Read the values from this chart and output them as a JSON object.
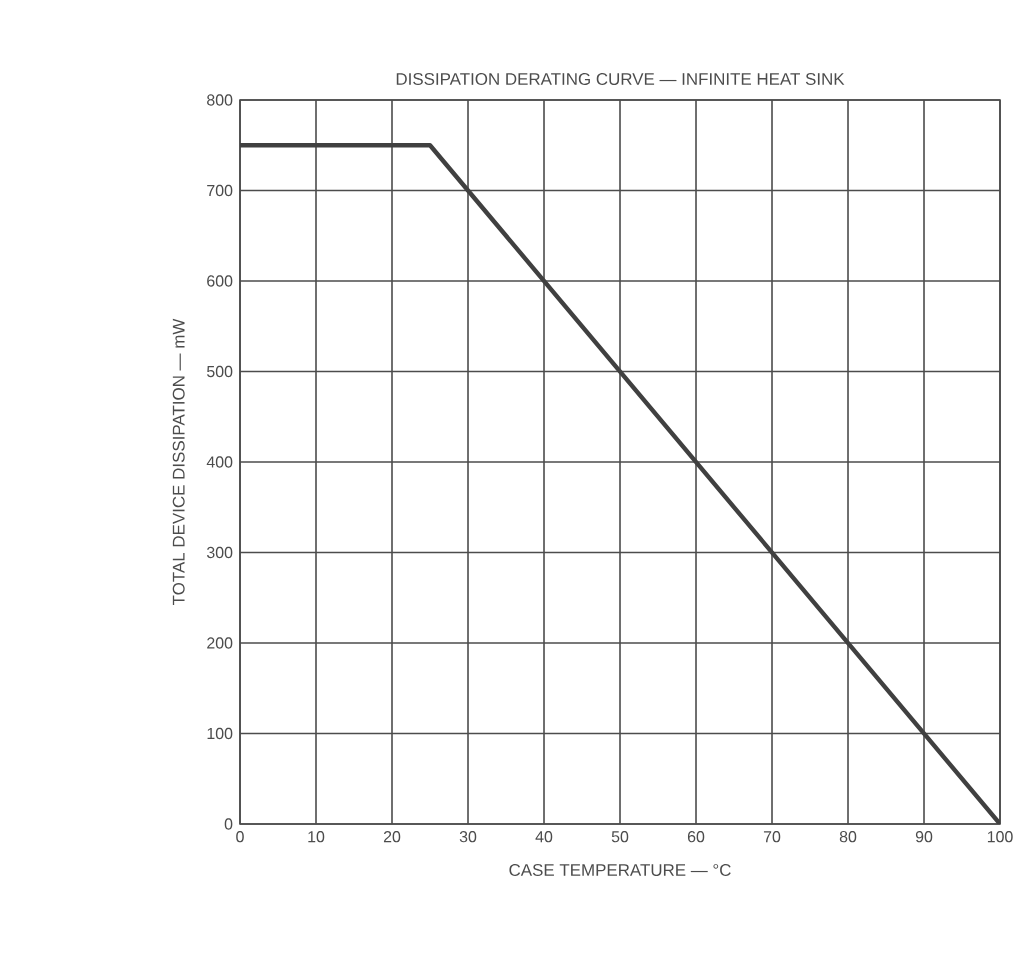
{
  "chart_data": {
    "type": "line",
    "title": "DISSIPATION DERATING CURVE — INFINITE HEAT SINK",
    "xlabel": "CASE TEMPERATURE — °C",
    "ylabel": "TOTAL DEVICE DISSIPATION — mW",
    "x": [
      0,
      25,
      100
    ],
    "series": [
      {
        "color": "#404040",
        "values": [
          750,
          750,
          0
        ]
      }
    ],
    "xlim": [
      0,
      100
    ],
    "ylim": [
      0,
      800
    ],
    "xticks": [
      0,
      10,
      20,
      30,
      40,
      50,
      60,
      70,
      80,
      90,
      100
    ],
    "yticks": [
      0,
      100,
      200,
      300,
      400,
      500,
      600,
      700,
      800
    ],
    "grid": true,
    "marker": "none",
    "line_style": "solid"
  }
}
